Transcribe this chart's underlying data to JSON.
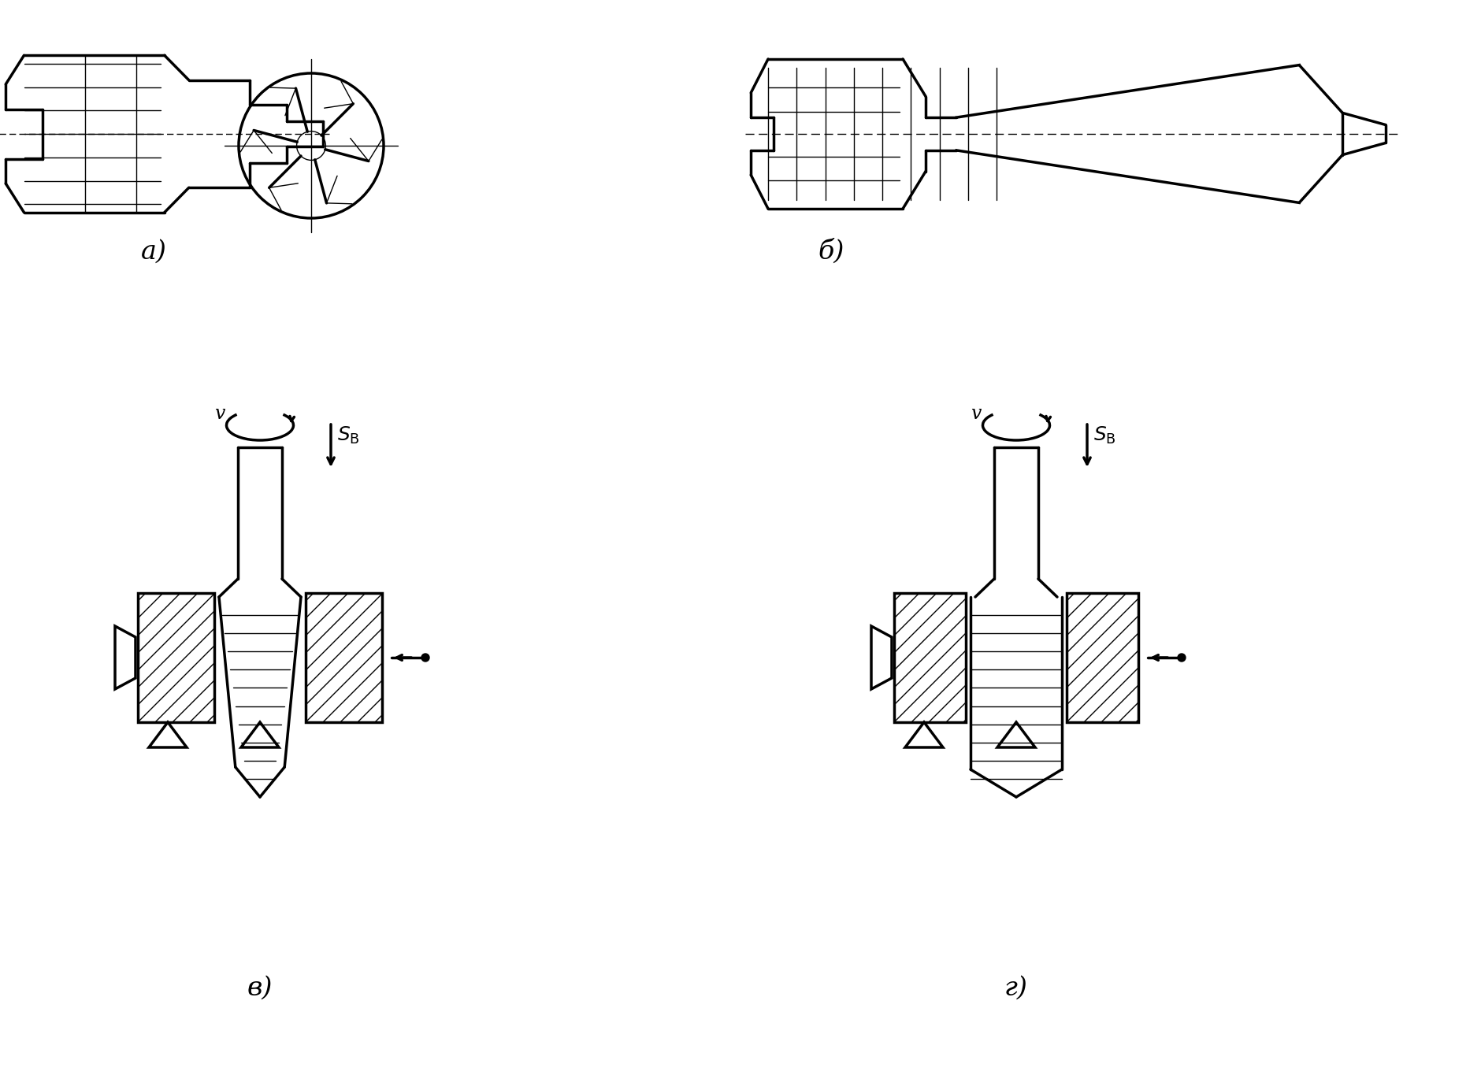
{
  "figure_width": 18.8,
  "figure_height": 13.65,
  "dpi": 100,
  "bg_color": "#ffffff",
  "labels": {
    "a": "а)",
    "b": "б)",
    "v": "в)",
    "g": "г)"
  },
  "label_fontsize": 24,
  "lw_main": 2.5,
  "lw_thin": 1.0,
  "line_color": "#000000"
}
